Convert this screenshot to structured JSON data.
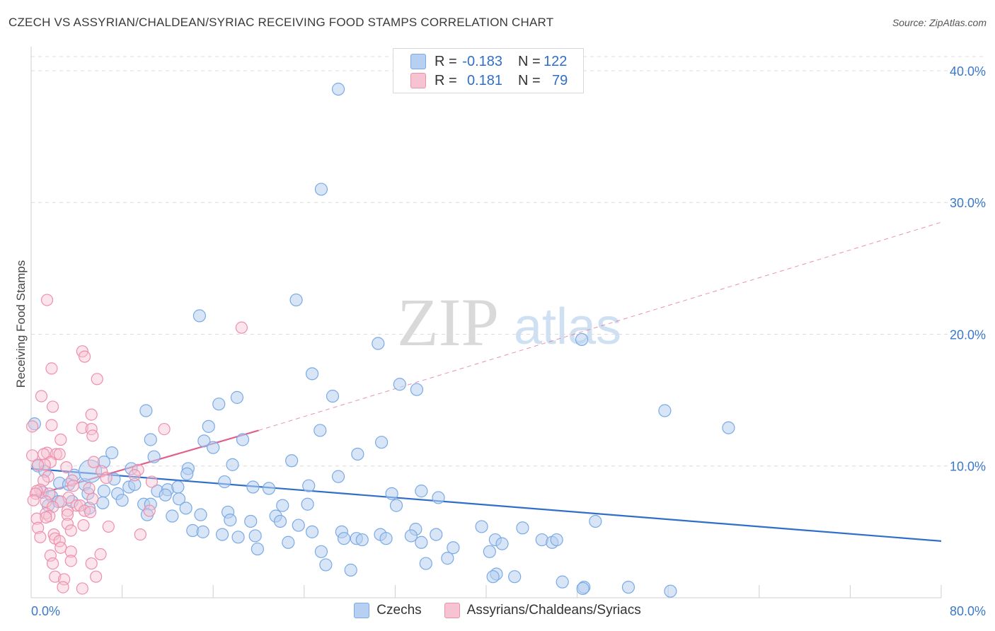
{
  "header": {
    "title": "CZECH VS ASSYRIAN/CHALDEAN/SYRIAC RECEIVING FOOD STAMPS CORRELATION CHART",
    "source": "Source: ZipAtlas.com"
  },
  "legend": {
    "rows": [
      {
        "r_label": "R =",
        "r_value": "-0.183",
        "n_label": "N =",
        "n_value": "122"
      },
      {
        "r_label": "R =",
        "r_value": "0.181",
        "n_label": "N =",
        "n_value": "79"
      }
    ]
  },
  "watermark": {
    "zip": "ZIP",
    "atlas": "atlas"
  },
  "colors": {
    "czechs": "#7aaae6",
    "czechs_fill": "#b7d0f1",
    "czechs_line": "#2f6fc9",
    "assyrians": "#ee8fac",
    "assyrians_fill": "#f6c3d3",
    "assyrians_line": "#e0628c",
    "axis_text": "#3a78cc",
    "grid": "#dcdcdc"
  },
  "chart_data": {
    "type": "scatter",
    "title": "CZECH VS ASSYRIAN/CHALDEAN/SYRIAC RECEIVING FOOD STAMPS CORRELATION CHART",
    "xlabel": "",
    "ylabel": "Receiving Food Stamps",
    "xlim": [
      0,
      80
    ],
    "ylim": [
      0,
      41.5
    ],
    "x_tick_labels": [
      "0.0%",
      "80.0%"
    ],
    "y_ticks": [
      10,
      20,
      30,
      40
    ],
    "y_tick_labels": [
      "10.0%",
      "20.0%",
      "30.0%",
      "40.0%"
    ],
    "grid": true,
    "legend_position": "top-center",
    "series": [
      {
        "name": "Czechs",
        "r": -0.183,
        "n": 122,
        "trend": {
          "x": [
            0,
            80
          ],
          "y": [
            9.8,
            4.3
          ]
        },
        "points": [
          [
            27,
            38.6
          ],
          [
            25.5,
            31
          ],
          [
            23.3,
            22.6
          ],
          [
            14.8,
            21.4
          ],
          [
            30.5,
            19.3
          ],
          [
            48.4,
            19.6
          ],
          [
            24.7,
            17
          ],
          [
            32.4,
            16.2
          ],
          [
            33.9,
            15.8
          ],
          [
            18.1,
            15.2
          ],
          [
            16.5,
            14.7
          ],
          [
            10.1,
            14.2
          ],
          [
            55.7,
            14.2
          ],
          [
            61.3,
            12.9
          ],
          [
            15.6,
            13
          ],
          [
            25.4,
            12.7
          ],
          [
            10.5,
            12
          ],
          [
            15.2,
            11.9
          ],
          [
            18.6,
            12
          ],
          [
            30.8,
            11.8
          ],
          [
            16,
            11.4
          ],
          [
            7.1,
            11
          ],
          [
            28.7,
            10.9
          ],
          [
            10.8,
            10.7
          ],
          [
            22.9,
            10.4
          ],
          [
            6.4,
            10.3
          ],
          [
            17.7,
            10.1
          ],
          [
            0.6,
            10
          ],
          [
            13.8,
            9.8
          ],
          [
            1.2,
            9.6
          ],
          [
            8.8,
            9.8
          ],
          [
            3.8,
            9.3
          ],
          [
            7.3,
            9
          ],
          [
            2.5,
            8.7
          ],
          [
            3.3,
            8.6
          ],
          [
            4.7,
            8.6
          ],
          [
            8.6,
            8.4
          ],
          [
            17,
            8.8
          ],
          [
            6.4,
            8.1
          ],
          [
            1,
            8
          ],
          [
            7.6,
            7.9
          ],
          [
            11.1,
            8.1
          ],
          [
            12,
            8.2
          ],
          [
            19.5,
            8.4
          ],
          [
            20.9,
            8.3
          ],
          [
            9.1,
            8.6
          ],
          [
            34.3,
            8.1
          ],
          [
            1.8,
            7.7
          ],
          [
            5,
            7.9
          ],
          [
            11.8,
            7.8
          ],
          [
            12.9,
            8.4
          ],
          [
            31.7,
            7.9
          ],
          [
            35.8,
            7.6
          ],
          [
            2.4,
            7.3
          ],
          [
            3.6,
            7.3
          ],
          [
            8,
            7.4
          ],
          [
            9.9,
            7.1
          ],
          [
            13,
            7.5
          ],
          [
            22.1,
            7
          ],
          [
            24.3,
            7.1
          ],
          [
            32.1,
            7
          ],
          [
            1.5,
            7
          ],
          [
            6.3,
            7.2
          ],
          [
            10.5,
            7.1
          ],
          [
            13.6,
            6.8
          ],
          [
            17.3,
            6.5
          ],
          [
            14.9,
            6.3
          ],
          [
            21.5,
            6.2
          ],
          [
            5.1,
            6.8
          ],
          [
            10.2,
            6.3
          ],
          [
            12.4,
            6.2
          ],
          [
            17.5,
            5.9
          ],
          [
            19.3,
            5.8
          ],
          [
            21.9,
            5.8
          ],
          [
            23.5,
            5.5
          ],
          [
            39.6,
            5.4
          ],
          [
            43.2,
            5.3
          ],
          [
            49.6,
            5.8
          ],
          [
            33.8,
            5.2
          ],
          [
            27.3,
            5
          ],
          [
            30.7,
            4.8
          ],
          [
            24.7,
            5
          ],
          [
            14.2,
            5.1
          ],
          [
            19.7,
            4.7
          ],
          [
            31.2,
            4.5
          ],
          [
            40.8,
            4.4
          ],
          [
            35.6,
            4.8
          ],
          [
            44.9,
            4.4
          ],
          [
            15.1,
            5
          ],
          [
            16.8,
            4.8
          ],
          [
            28.6,
            4.5
          ],
          [
            29.1,
            4.4
          ],
          [
            33.4,
            4.7
          ],
          [
            34.3,
            4.2
          ],
          [
            45.8,
            4.2
          ],
          [
            46.2,
            4.4
          ],
          [
            27.5,
            4.5
          ],
          [
            37.1,
            3.8
          ],
          [
            41.4,
            4.1
          ],
          [
            22.6,
            4.2
          ],
          [
            18.2,
            4.6
          ],
          [
            25.5,
            3.5
          ],
          [
            19.9,
            3.7
          ],
          [
            36.6,
            3
          ],
          [
            40.3,
            3.5
          ],
          [
            25.9,
            2.5
          ],
          [
            34.7,
            2.6
          ],
          [
            28.1,
            2.1
          ],
          [
            40.9,
            1.8
          ],
          [
            40.6,
            1.6
          ],
          [
            42.5,
            1.6
          ],
          [
            46.7,
            1.2
          ],
          [
            48.6,
            0.8
          ],
          [
            48.5,
            0.7
          ],
          [
            52.5,
            0.8
          ],
          [
            56.2,
            0.5
          ],
          [
            0.3,
            13.2
          ],
          [
            5.2,
            9.6
          ],
          [
            26.5,
            15.3
          ],
          [
            27,
            9.2
          ],
          [
            24.4,
            8.5
          ],
          [
            13.7,
            9.4
          ]
        ]
      },
      {
        "name": "Assyrians/Chaldeans/Syriacs",
        "r": 0.181,
        "n": 79,
        "trend": {
          "x": [
            0,
            20
          ],
          "y": [
            7.7,
            12.7
          ]
        },
        "trend_extended": {
          "x": [
            20,
            80
          ],
          "y": [
            12.7,
            28.5
          ]
        },
        "points": [
          [
            1.4,
            22.6
          ],
          [
            18.5,
            20.5
          ],
          [
            4.5,
            18.7
          ],
          [
            4.7,
            18.3
          ],
          [
            1.8,
            17.4
          ],
          [
            5.8,
            16.6
          ],
          [
            0.9,
            15.3
          ],
          [
            1.9,
            14.5
          ],
          [
            5.3,
            13.9
          ],
          [
            0.1,
            13
          ],
          [
            1.8,
            13.1
          ],
          [
            4.5,
            12.9
          ],
          [
            5.3,
            12.8
          ],
          [
            11.7,
            12.8
          ],
          [
            5.4,
            12.3
          ],
          [
            2.6,
            12
          ],
          [
            1.4,
            11
          ],
          [
            1.1,
            10.9
          ],
          [
            2.2,
            10.9
          ],
          [
            2.5,
            10.9
          ],
          [
            0.1,
            10.8
          ],
          [
            5.5,
            10.3
          ],
          [
            1.7,
            10.3
          ],
          [
            1.2,
            10.1
          ],
          [
            0.6,
            10.1
          ],
          [
            3.1,
            9.9
          ],
          [
            9.4,
            9.7
          ],
          [
            6.2,
            9.6
          ],
          [
            9.1,
            9.3
          ],
          [
            1.5,
            9.2
          ],
          [
            6.6,
            9.1
          ],
          [
            3.6,
            8.9
          ],
          [
            1.1,
            8.9
          ],
          [
            10.6,
            8.8
          ],
          [
            3.7,
            8.5
          ],
          [
            5.1,
            8.3
          ],
          [
            0.8,
            8.2
          ],
          [
            0.5,
            8.1
          ],
          [
            0.4,
            7.9
          ],
          [
            1.6,
            7.9
          ],
          [
            3.3,
            7.6
          ],
          [
            5.4,
            7.5
          ],
          [
            0.2,
            7.4
          ],
          [
            1.3,
            7.3
          ],
          [
            2.6,
            7.3
          ],
          [
            4,
            7
          ],
          [
            4.3,
            7
          ],
          [
            1.9,
            6.9
          ],
          [
            3.2,
            6.6
          ],
          [
            4.7,
            6.6
          ],
          [
            5.2,
            6.5
          ],
          [
            10.4,
            6.6
          ],
          [
            1.3,
            6.4
          ],
          [
            1.6,
            6.2
          ],
          [
            3.2,
            6.3
          ],
          [
            0.5,
            6
          ],
          [
            1.3,
            6.1
          ],
          [
            3.2,
            5.6
          ],
          [
            4.6,
            5.5
          ],
          [
            6.8,
            5.4
          ],
          [
            0.6,
            5.3
          ],
          [
            3.5,
            5.1
          ],
          [
            2,
            4.8
          ],
          [
            9.6,
            4.8
          ],
          [
            0.8,
            4.6
          ],
          [
            2.1,
            4.5
          ],
          [
            2.5,
            4.3
          ],
          [
            2.6,
            3.8
          ],
          [
            3.5,
            3.5
          ],
          [
            6.1,
            3.3
          ],
          [
            1.7,
            3.2
          ],
          [
            3.5,
            2.8
          ],
          [
            5.3,
            2.6
          ],
          [
            1.9,
            2.6
          ],
          [
            2.1,
            1.6
          ],
          [
            5.7,
            1.6
          ],
          [
            2.9,
            1.4
          ],
          [
            2.8,
            0.8
          ],
          [
            4.5,
            0.7
          ]
        ]
      }
    ]
  },
  "bottom_legend": {
    "czechs": "Czechs",
    "assyrians": "Assyrians/Chaldeans/Syriacs"
  }
}
